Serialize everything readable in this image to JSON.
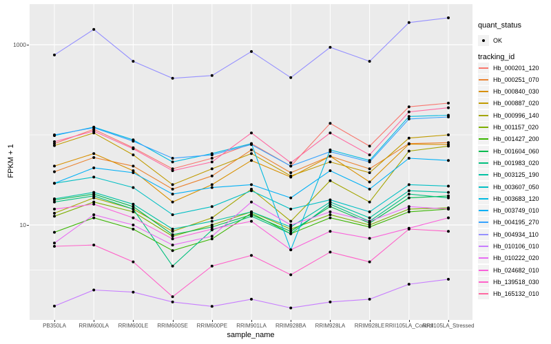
{
  "chart_data": {
    "type": "line",
    "title": "",
    "xlabel": "sample_name",
    "ylabel": "FPKM + 1",
    "y_scale": "log10",
    "ylim": [
      0.89,
      2800
    ],
    "grid": "major-white-on-gray",
    "legend_position": "right",
    "panel_bg": "#EBEBEB",
    "grid_color": "#FFFFFF",
    "point_color": "#000000",
    "y_axis": {
      "ticks": [
        {
          "label": "1000",
          "value": 1000
        },
        {
          "label": "10",
          "value": 10
        }
      ],
      "minor_gridline_values": [
        100,
        3.162
      ]
    },
    "categories": [
      "PB350LA",
      "RRIM600LA",
      "RRIM600LE",
      "RRIM600SE",
      "RRIM600PE",
      "RRIM901LA",
      "RRIM928BA",
      "RRIM928LA",
      "RRIM928LE",
      "RRII105LA_Control",
      "RRII105LA_Stressed"
    ],
    "series": [
      {
        "name": "Hb_000201_120",
        "color": "#F8766D",
        "values": [
          80,
          115,
          72,
          42,
          55,
          80,
          45,
          134,
          75,
          205,
          225
        ]
      },
      {
        "name": "Hb_000251_070",
        "color": "#EA8331",
        "values": [
          39,
          56,
          45,
          25,
          35,
          68,
          38,
          58,
          42,
          80,
          82
        ]
      },
      {
        "name": "Hb_000840_030",
        "color": "#D89000",
        "values": [
          45,
          62,
          40,
          18,
          28,
          52,
          34,
          58,
          30,
          79,
          78
        ]
      },
      {
        "name": "Hb_000887_020",
        "color": "#C09B00",
        "values": [
          76,
          105,
          60,
          28,
          42,
          62,
          35,
          50,
          38,
          92,
          100
        ]
      },
      {
        "name": "Hb_000996_140",
        "color": "#A3A500",
        "values": [
          13.5,
          20,
          15,
          8.5,
          12,
          25,
          11,
          31,
          18,
          66,
          75
        ]
      },
      {
        "name": "Hb_001157_020",
        "color": "#7CAE00",
        "values": [
          12.5,
          18,
          14,
          7.5,
          10,
          14,
          9,
          13,
          10,
          15,
          15.5
        ]
      },
      {
        "name": "Hb_001427_200",
        "color": "#39B600",
        "values": [
          8.3,
          12,
          9,
          5.2,
          7,
          13.5,
          8,
          12,
          9.5,
          14,
          15
        ]
      },
      {
        "name": "Hb_001604_060",
        "color": "#00BB4E",
        "values": [
          19,
          22,
          16,
          7.8,
          9.5,
          13,
          8.5,
          16,
          10.5,
          20,
          21
        ]
      },
      {
        "name": "Hb_001983_020",
        "color": "#00BF7D",
        "values": [
          18,
          21,
          15,
          3.5,
          8.8,
          12.5,
          8,
          17,
          11,
          22,
          20
        ]
      },
      {
        "name": "Hb_003125_190",
        "color": "#00C1A3",
        "values": [
          19.5,
          23,
          17,
          9,
          11,
          14,
          9.5,
          18,
          12,
          24,
          23
        ]
      },
      {
        "name": "Hb_003607_050",
        "color": "#00BFC4",
        "values": [
          29,
          34,
          26,
          13,
          16,
          24,
          15,
          19,
          14,
          28,
          27
        ]
      },
      {
        "name": "Hb_003683_120",
        "color": "#00BAE0",
        "values": [
          98,
          122,
          88,
          50,
          62,
          80,
          5.3,
          68,
          52,
          160,
          165
        ]
      },
      {
        "name": "Hb_003749_010",
        "color": "#00B0F6",
        "values": [
          29,
          43,
          38,
          22,
          26,
          28,
          20,
          40,
          25,
          55,
          52
        ]
      },
      {
        "name": "Hb_004195_270",
        "color": "#35A2FF",
        "values": [
          100,
          120,
          85,
          55,
          60,
          78,
          45,
          65,
          50,
          150,
          158
        ]
      },
      {
        "name": "Hb_004934_110",
        "color": "#9590FF",
        "values": [
          770,
          1480,
          655,
          424,
          455,
          840,
          432,
          935,
          655,
          1760,
          1990
        ]
      },
      {
        "name": "Hb_010106_010",
        "color": "#C77CFF",
        "values": [
          1.26,
          1.9,
          1.8,
          1.4,
          1.25,
          1.5,
          1.2,
          1.4,
          1.5,
          2.2,
          2.5
        ]
      },
      {
        "name": "Hb_010222_020",
        "color": "#E76BF3",
        "values": [
          6.3,
          13,
          10,
          6,
          7.5,
          18,
          10,
          14,
          11,
          16,
          15
        ]
      },
      {
        "name": "Hb_024682_010",
        "color": "#FA62DB",
        "values": [
          15,
          17,
          12,
          7,
          9,
          11,
          5.3,
          8.5,
          7.1,
          9.2,
          12
        ]
      },
      {
        "name": "Hb_139518_030",
        "color": "#FF61C9",
        "values": [
          5.8,
          6,
          3.9,
          1.6,
          3.5,
          4.6,
          2.8,
          5,
          3.9,
          9,
          8.5
        ]
      },
      {
        "name": "Hb_165132_010",
        "color": "#FF68A1",
        "values": [
          84,
          110,
          70,
          40,
          50,
          105,
          49,
          105,
          60,
          180,
          200
        ]
      }
    ],
    "legend": {
      "quant_status_title": "quant_status",
      "quant_status_label": "OK",
      "tracking_id_title": "tracking_id"
    }
  }
}
